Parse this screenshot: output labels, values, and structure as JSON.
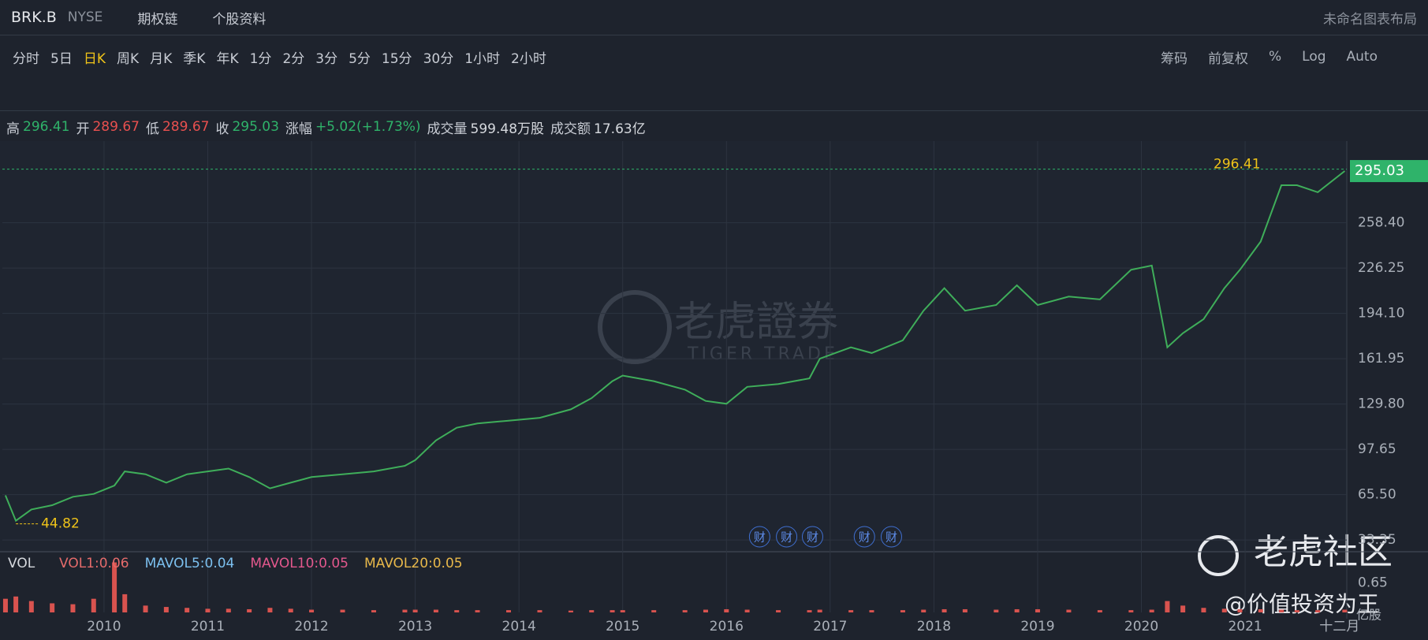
{
  "header": {
    "symbol": "BRK.B",
    "exchange": "NYSE",
    "links": [
      "期权链",
      "个股资料"
    ],
    "layout": "未命名图表布局"
  },
  "periods": {
    "items": [
      "分时",
      "5日",
      "日K",
      "周K",
      "月K",
      "季K",
      "年K",
      "1分",
      "2分",
      "3分",
      "5分",
      "15分",
      "30分",
      "1小时",
      "2小时"
    ],
    "active": 2
  },
  "options": [
    "筹码",
    "前复权",
    "%",
    "Log",
    "Auto"
  ],
  "quote": [
    {
      "label": "高",
      "value": "296.41",
      "color": "#2fb36a"
    },
    {
      "label": "开",
      "value": "289.67",
      "color": "#e8504f"
    },
    {
      "label": "低",
      "value": "289.67",
      "color": "#e8504f"
    },
    {
      "label": "收",
      "value": "295.03",
      "color": "#2fb36a"
    },
    {
      "label": "涨幅",
      "value": "+5.02(+1.73%)",
      "color": "#2fb36a"
    },
    {
      "label": "成交量",
      "value": "599.48万股",
      "color": "#d6d9de"
    },
    {
      "label": "成交额",
      "value": "17.63亿",
      "color": "#d6d9de"
    }
  ],
  "watermark": {
    "brand": "老虎證券",
    "brand_en": "TIGER TRADE",
    "community": "老虎社区",
    "author": "@价值投资为王"
  },
  "events": {
    "label": "财",
    "x": [
      2016.32,
      2016.58,
      2016.83,
      2017.33,
      2017.59
    ]
  },
  "chart_data": [
    {
      "type": "line",
      "color": "#3fae5a",
      "x": [
        2009.05,
        2009.15,
        2009.3,
        2009.5,
        2009.7,
        2009.9,
        2010.1,
        2010.2,
        2010.4,
        2010.6,
        2010.8,
        2011.0,
        2011.2,
        2011.4,
        2011.6,
        2011.8,
        2012.0,
        2012.3,
        2012.6,
        2012.9,
        2013.0,
        2013.2,
        2013.4,
        2013.6,
        2013.9,
        2014.2,
        2014.5,
        2014.7,
        2014.9,
        2015.0,
        2015.3,
        2015.6,
        2015.8,
        2016.0,
        2016.2,
        2016.5,
        2016.8,
        2016.9,
        2017.2,
        2017.4,
        2017.7,
        2017.9,
        2018.1,
        2018.3,
        2018.6,
        2018.8,
        2019.0,
        2019.3,
        2019.6,
        2019.9,
        2020.1,
        2020.25,
        2020.4,
        2020.6,
        2020.8,
        2020.95,
        2021.15,
        2021.35,
        2021.5,
        2021.7,
        2021.96
      ],
      "values": [
        65,
        47,
        55,
        58,
        64,
        66,
        72,
        82,
        80,
        74,
        80,
        82,
        84,
        78,
        70,
        74,
        78,
        80,
        82,
        86,
        90,
        104,
        113,
        116,
        118,
        120,
        126,
        134,
        146,
        150,
        146,
        140,
        132,
        130,
        142,
        144,
        148,
        162,
        170,
        166,
        175,
        196,
        212,
        196,
        200,
        214,
        200,
        206,
        204,
        225,
        228,
        170,
        180,
        190,
        212,
        225,
        245,
        285,
        285,
        280,
        295.03
      ],
      "xlim": [
        2009.02,
        2021.98
      ],
      "xticks": [
        2010,
        2011,
        2012,
        2013,
        2014,
        2015,
        2016,
        2017,
        2018,
        2019,
        2020,
        2021,
        {
          "value": 2021.91,
          "label": "十二月"
        }
      ],
      "ylim": [
        25.6,
        316.3
      ],
      "yticks": [
        33.35,
        {
          "value": 65.5,
          "label": "65.50"
        },
        97.65,
        {
          "value": 129.8,
          "label": "129.80"
        },
        161.95,
        {
          "value": 194.1,
          "label": "194.10"
        },
        226.25,
        {
          "value": 258.4,
          "label": "258.40"
        }
      ],
      "grid": true,
      "annotations": {
        "high": {
          "x": 2021.3,
          "y": 296.41
        },
        "low": {
          "x": 2009.15,
          "y": 44.82
        },
        "last": 295.03
      }
    },
    {
      "type": "bar",
      "color": "#d9534f",
      "label": "VOL",
      "unit": "亿股",
      "indicators": [
        {
          "name": "VOL1:0.06",
          "color": "#e56b6b"
        },
        {
          "name": "MAVOL5:0.04",
          "color": "#7cc0ef"
        },
        {
          "name": "MAVOL10:0.05",
          "color": "#e3588d"
        },
        {
          "name": "MAVOL20:0.05",
          "color": "#e8b84a"
        }
      ],
      "x": [
        2009.05,
        2009.15,
        2009.3,
        2009.5,
        2009.7,
        2009.9,
        2010.1,
        2010.2,
        2010.4,
        2010.6,
        2010.8,
        2011.0,
        2011.2,
        2011.4,
        2011.6,
        2011.8,
        2012.0,
        2012.3,
        2012.6,
        2012.9,
        2013.0,
        2013.2,
        2013.4,
        2013.6,
        2013.9,
        2014.2,
        2014.5,
        2014.7,
        2014.9,
        2015.0,
        2015.3,
        2015.6,
        2015.8,
        2016.0,
        2016.2,
        2016.5,
        2016.8,
        2016.9,
        2017.2,
        2017.4,
        2017.7,
        2017.9,
        2018.1,
        2018.3,
        2018.6,
        2018.8,
        2019.0,
        2019.3,
        2019.6,
        2019.9,
        2020.1,
        2020.25,
        2020.4,
        2020.6,
        2020.8,
        2020.95,
        2021.15,
        2021.35,
        2021.5,
        2021.7,
        2021.96
      ],
      "values": [
        0.3,
        0.35,
        0.25,
        0.2,
        0.18,
        0.3,
        1.1,
        0.4,
        0.15,
        0.12,
        0.1,
        0.08,
        0.08,
        0.07,
        0.1,
        0.08,
        0.06,
        0.06,
        0.05,
        0.06,
        0.06,
        0.06,
        0.05,
        0.05,
        0.05,
        0.05,
        0.04,
        0.05,
        0.05,
        0.05,
        0.05,
        0.05,
        0.06,
        0.07,
        0.06,
        0.05,
        0.05,
        0.06,
        0.05,
        0.05,
        0.05,
        0.06,
        0.07,
        0.07,
        0.06,
        0.07,
        0.07,
        0.06,
        0.05,
        0.05,
        0.06,
        0.25,
        0.15,
        0.1,
        0.08,
        0.07,
        0.07,
        0.06,
        0.05,
        0.05,
        0.06
      ],
      "ylim": [
        0,
        1.3
      ],
      "yticks": [
        0.65
      ]
    }
  ]
}
